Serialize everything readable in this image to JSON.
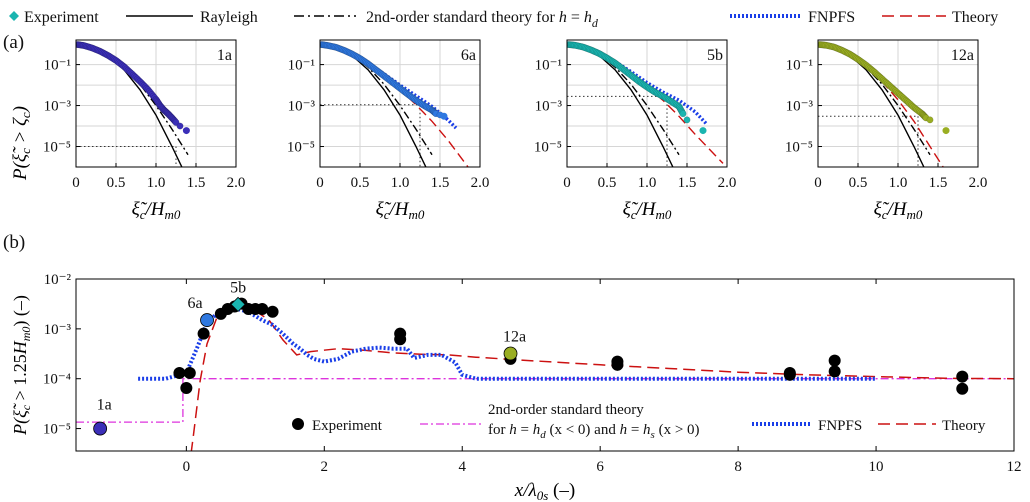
{
  "figure": {
    "panel_a_label": "(a)",
    "panel_b_label": "(b)"
  },
  "colors": {
    "1a": "#3b2fb8",
    "6a": "#2f78e0",
    "5b": "#1ab5b0",
    "12a": "#9aae22",
    "experiment_legend": "#1ab5b0",
    "fnpfs": "#1a3ee8",
    "theory": "#cc1111",
    "rayleigh": "#000000",
    "second_order": "#000000",
    "second_order_b": "#dd33dd",
    "dotted": "#333333"
  },
  "legend_a": {
    "experiment": "Experiment",
    "rayleigh": "Rayleigh",
    "second_order_pre": "2nd-order standard theory for ",
    "second_order_h": "h",
    "second_order_eq": " = ",
    "second_order_hd": "h",
    "second_order_sub": "d",
    "fnpfs": "FNPFS",
    "theory": "Theory"
  },
  "legend_b": {
    "experiment": "Experiment",
    "second_order_line1": "2nd-order standard theory",
    "second_order_line2_pre": "for ",
    "second_order_line2_h1": "h",
    "second_order_line2_mid1": " = ",
    "second_order_line2_h2": "h",
    "second_order_line2_sub1": "d",
    "second_order_line2_mid2": " (x < 0) and ",
    "second_order_line2_h3": "h",
    "second_order_line2_mid3": " = ",
    "second_order_line2_h4": "h",
    "second_order_line2_sub2": "s",
    "second_order_line2_end": " (x > 0)",
    "fnpfs": "FNPFS",
    "theory": "Theory"
  },
  "axes_a": {
    "ylabel": "P(ξ̃c > ζc)",
    "xlabel": "ξ̃c/Hm0",
    "xticks": [
      "0",
      "0.5",
      "1.0",
      "1.5",
      "2.0"
    ],
    "yticks": [
      "10⁻¹",
      "10⁻³",
      "10⁻⁵"
    ]
  },
  "axes_b": {
    "ylabel": "P(ξ̃c > 1.25Hm0) (–)",
    "xlabel": "x/λ0s (–)",
    "xticks": [
      "0",
      "2",
      "4",
      "6",
      "8",
      "10",
      "12"
    ],
    "yticks": [
      "10⁻⁵",
      "10⁻⁴",
      "10⁻³",
      "10⁻²"
    ]
  },
  "chart_data": [
    {
      "type": "line",
      "panel": "a",
      "subplot_label": "1a",
      "xlim": [
        0,
        2.0
      ],
      "ylim_log10": [
        -6,
        0.2
      ],
      "yscale": "log",
      "grid": true,
      "experiment": {
        "x": [
          0.02,
          0.1,
          0.2,
          0.3,
          0.4,
          0.5,
          0.6,
          0.7,
          0.8,
          0.9,
          1.0,
          1.05,
          1.1,
          1.15,
          1.2,
          1.25,
          1.3,
          1.38
        ],
        "y": [
          0.95,
          0.85,
          0.65,
          0.45,
          0.28,
          0.16,
          0.08,
          0.035,
          0.015,
          0.006,
          0.002,
          0.001,
          0.0006,
          0.0004,
          0.00025,
          0.00015,
          0.0001,
          6e-05
        ]
      },
      "rayleigh": {
        "x": [
          0,
          0.2,
          0.4,
          0.6,
          0.8,
          1.0,
          1.2,
          1.35
        ],
        "y": [
          1,
          0.73,
          0.28,
          0.056,
          0.0059,
          0.00034,
          1e-05,
          6e-07
        ]
      },
      "second_order": {
        "x": [
          0,
          0.2,
          0.4,
          0.6,
          0.8,
          1.0,
          1.2,
          1.4
        ],
        "y": [
          1,
          0.75,
          0.32,
          0.075,
          0.011,
          0.001,
          7e-05,
          4e-06
        ]
      },
      "level_y": 1e-05,
      "level_x": 1.25
    },
    {
      "type": "line",
      "panel": "a",
      "subplot_label": "6a",
      "xlim": [
        0,
        2.0
      ],
      "ylim_log10": [
        -6,
        0.2
      ],
      "yscale": "log",
      "grid": true,
      "experiment": {
        "x": [
          0.02,
          0.1,
          0.2,
          0.3,
          0.4,
          0.5,
          0.6,
          0.7,
          0.8,
          0.9,
          1.0,
          1.1,
          1.2,
          1.3,
          1.4,
          1.45,
          1.5,
          1.55
        ],
        "y": [
          0.95,
          0.85,
          0.7,
          0.5,
          0.33,
          0.2,
          0.11,
          0.055,
          0.028,
          0.014,
          0.007,
          0.0035,
          0.0018,
          0.001,
          0.0006,
          0.0004,
          0.00035,
          0.0003
        ]
      },
      "fnpfs": {
        "x": [
          0,
          0.2,
          0.4,
          0.6,
          0.8,
          1.0,
          1.2,
          1.4,
          1.6,
          1.7
        ],
        "y": [
          1,
          0.7,
          0.35,
          0.12,
          0.035,
          0.01,
          0.003,
          0.0009,
          0.0002,
          8e-05
        ]
      },
      "theory": {
        "x": [
          0,
          0.2,
          0.4,
          0.6,
          0.8,
          1.0,
          1.2,
          1.4,
          1.6,
          1.85
        ],
        "y": [
          1,
          0.72,
          0.34,
          0.11,
          0.028,
          0.006,
          0.0011,
          0.00017,
          2e-05,
          1e-06
        ]
      },
      "rayleigh": {
        "x": [
          0,
          0.2,
          0.4,
          0.6,
          0.8,
          1.0,
          1.2,
          1.35
        ],
        "y": [
          1,
          0.73,
          0.28,
          0.056,
          0.0059,
          0.00034,
          1e-05,
          6e-07
        ]
      },
      "second_order": {
        "x": [
          0,
          0.2,
          0.4,
          0.6,
          0.8,
          1.0,
          1.2,
          1.4
        ],
        "y": [
          1,
          0.75,
          0.32,
          0.075,
          0.011,
          0.001,
          7e-05,
          4e-06
        ]
      },
      "level_y": 0.0011,
      "level_x": 1.25
    },
    {
      "type": "line",
      "panel": "a",
      "subplot_label": "5b",
      "xlim": [
        0,
        2.0
      ],
      "ylim_log10": [
        -6,
        0.2
      ],
      "yscale": "log",
      "grid": true,
      "experiment": {
        "x": [
          0.02,
          0.1,
          0.2,
          0.3,
          0.4,
          0.5,
          0.6,
          0.7,
          0.8,
          0.9,
          1.0,
          1.1,
          1.2,
          1.3,
          1.4,
          1.45,
          1.5,
          1.7
        ],
        "y": [
          0.95,
          0.88,
          0.72,
          0.52,
          0.35,
          0.21,
          0.12,
          0.06,
          0.03,
          0.015,
          0.008,
          0.0045,
          0.0028,
          0.0016,
          0.0009,
          0.0004,
          0.0002,
          6e-05
        ]
      },
      "fnpfs": {
        "x": [
          0,
          0.2,
          0.4,
          0.6,
          0.8,
          1.0,
          1.2,
          1.4,
          1.6,
          1.75
        ],
        "y": [
          1,
          0.72,
          0.38,
          0.14,
          0.045,
          0.013,
          0.0045,
          0.0018,
          0.0005,
          0.00012
        ]
      },
      "theory": {
        "x": [
          0,
          0.2,
          0.4,
          0.6,
          0.8,
          1.0,
          1.2,
          1.4,
          1.6,
          1.95
        ],
        "y": [
          1,
          0.74,
          0.36,
          0.12,
          0.032,
          0.008,
          0.0018,
          0.0003,
          4e-05,
          1.5e-06
        ]
      },
      "rayleigh": {
        "x": [
          0,
          0.2,
          0.4,
          0.6,
          0.8,
          1.0,
          1.2,
          1.35
        ],
        "y": [
          1,
          0.73,
          0.28,
          0.056,
          0.0059,
          0.00034,
          1e-05,
          6e-07
        ]
      },
      "second_order": {
        "x": [
          0,
          0.2,
          0.4,
          0.6,
          0.8,
          1.0,
          1.2,
          1.4
        ],
        "y": [
          1,
          0.75,
          0.32,
          0.075,
          0.011,
          0.001,
          7e-05,
          4e-06
        ]
      },
      "level_y": 0.0028,
      "level_x": 1.25
    },
    {
      "type": "line",
      "panel": "a",
      "subplot_label": "12a",
      "xlim": [
        0,
        2.0
      ],
      "ylim_log10": [
        -6,
        0.2
      ],
      "yscale": "log",
      "grid": true,
      "experiment": {
        "x": [
          0.02,
          0.1,
          0.2,
          0.3,
          0.4,
          0.5,
          0.6,
          0.7,
          0.8,
          0.9,
          1.0,
          1.1,
          1.2,
          1.3,
          1.35,
          1.4,
          1.6
        ],
        "y": [
          0.95,
          0.88,
          0.72,
          0.5,
          0.32,
          0.18,
          0.095,
          0.045,
          0.02,
          0.009,
          0.004,
          0.0018,
          0.0008,
          0.0004,
          0.00025,
          0.0002,
          6e-05
        ]
      },
      "theory": {
        "x": [
          0,
          0.2,
          0.4,
          0.6,
          0.8,
          1.0,
          1.2,
          1.4,
          1.6
        ],
        "y": [
          1,
          0.73,
          0.31,
          0.085,
          0.015,
          0.0019,
          0.00017,
          1e-05,
          6e-07
        ]
      },
      "rayleigh": {
        "x": [
          0,
          0.2,
          0.4,
          0.6,
          0.8,
          1.0,
          1.2,
          1.35
        ],
        "y": [
          1,
          0.73,
          0.28,
          0.056,
          0.0059,
          0.00034,
          1e-05,
          6e-07
        ]
      },
      "second_order": {
        "x": [
          0,
          0.2,
          0.4,
          0.6,
          0.8,
          1.0,
          1.2,
          1.4
        ],
        "y": [
          1,
          0.75,
          0.32,
          0.075,
          0.011,
          0.001,
          7e-05,
          4e-06
        ]
      },
      "level_y": 0.0003,
      "level_x": 1.25
    },
    {
      "type": "line",
      "panel": "b",
      "xlim": [
        -1.6,
        12
      ],
      "ylim_log10": [
        -5.45,
        -2
      ],
      "yscale": "log",
      "grid": false,
      "experiment_points": {
        "x": [
          -1.25,
          -0.1,
          0.0,
          0.05,
          0.25,
          0.3,
          0.5,
          0.6,
          0.7,
          0.8,
          0.9,
          1.0,
          1.1,
          1.25,
          3.1,
          3.1,
          4.7,
          6.25,
          6.25,
          8.75,
          8.75,
          9.4,
          9.4,
          11.25,
          11.25
        ],
        "y": [
          1e-05,
          0.00013,
          6.5e-05,
          0.00013,
          0.0008,
          0.0015,
          0.002,
          0.0025,
          0.0028,
          0.0032,
          0.0025,
          0.0025,
          0.0025,
          0.0022,
          0.0008,
          0.00062,
          0.00025,
          0.00022,
          0.00019,
          0.00013,
          0.00012,
          0.00023,
          0.00014,
          0.00011,
          6.3e-05
        ]
      },
      "highlighted_points": [
        {
          "label": "1a",
          "x": -1.25,
          "y": 1e-05
        },
        {
          "label": "6a",
          "x": 0.3,
          "y": 0.0015
        },
        {
          "label": "5b",
          "x": 0.75,
          "y": 0.0031
        },
        {
          "label": "12a",
          "x": 4.7,
          "y": 0.00032
        }
      ],
      "second_order": {
        "x": [
          -1.6,
          -0.05,
          -0.05,
          12
        ],
        "y": [
          1.35e-05,
          1.35e-05,
          0.0001,
          0.0001
        ]
      },
      "fnpfs": {
        "x": [
          -0.7,
          -0.3,
          0.0,
          0.15,
          0.3,
          0.5,
          0.7,
          0.9,
          1.1,
          1.25,
          1.4,
          1.55,
          1.65,
          1.75,
          1.85,
          2.0,
          2.2,
          2.4,
          2.6,
          2.8,
          3.0,
          3.2,
          3.3,
          3.5,
          3.7,
          3.9,
          4.0,
          4.2,
          6.0,
          8.0,
          10.0
        ],
        "y": [
          0.0001,
          0.0001,
          0.00013,
          0.0004,
          0.0013,
          0.0024,
          0.0026,
          0.0022,
          0.0015,
          0.0012,
          0.0008,
          0.0005,
          0.0004,
          0.0003,
          0.00025,
          0.00022,
          0.00025,
          0.00035,
          0.0004,
          0.00042,
          0.0004,
          0.0004,
          0.00026,
          0.0003,
          0.0003,
          0.00021,
          0.00012,
          0.0001,
          0.0001,
          0.0001,
          0.0001
        ]
      },
      "theory": {
        "x": [
          0.0,
          0.1,
          0.2,
          0.3,
          0.45,
          0.6,
          0.8,
          1.0,
          1.2,
          1.4,
          1.6,
          1.8,
          2.2,
          2.6,
          3.0,
          3.4,
          3.8,
          4.2,
          5.0,
          6.0,
          7.0,
          8.0,
          9.0,
          10.0,
          11.0,
          12.0
        ],
        "y": [
          6e-07,
          7e-06,
          9e-05,
          0.0005,
          0.0018,
          0.0025,
          0.0026,
          0.0023,
          0.0015,
          0.0006,
          0.0003,
          0.00035,
          0.0004,
          0.00037,
          0.00033,
          0.00031,
          0.0003,
          0.00027,
          0.00023,
          0.00019,
          0.00016,
          0.000135,
          0.00012,
          0.00011,
          0.000102,
          0.0001
        ]
      }
    }
  ]
}
